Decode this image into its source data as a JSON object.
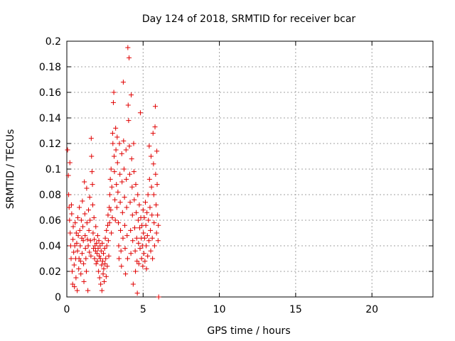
{
  "chart_data": {
    "type": "scatter",
    "title": "Day 124 of 2018, SRMTID for receiver bcar",
    "xlabel": "GPS time / hours",
    "ylabel": "SRMTID / TECUs",
    "xlim": [
      0,
      24
    ],
    "ylim": [
      0,
      0.2
    ],
    "xticks": [
      0,
      5,
      10,
      15,
      20
    ],
    "xtick_labels": [
      "0",
      "5",
      "10",
      "15",
      "20"
    ],
    "yticks": [
      0,
      0.02,
      0.04,
      0.06,
      0.08,
      0.1,
      0.12,
      0.14,
      0.16,
      0.18,
      0.2
    ],
    "ytick_labels": [
      "0",
      "0.02",
      "0.04",
      "0.06",
      "0.08",
      "0.1",
      "0.12",
      "0.14",
      "0.16",
      "0.18",
      "0.2"
    ],
    "grid": true,
    "marker": "+",
    "color": "#e00000",
    "series": [
      {
        "name": "SRMTID",
        "points": [
          [
            0.05,
            0.115
          ],
          [
            0.1,
            0.095
          ],
          [
            0.12,
            0.08
          ],
          [
            0.15,
            0.07
          ],
          [
            0.18,
            0.06
          ],
          [
            0.2,
            0.105
          ],
          [
            0.22,
            0.05
          ],
          [
            0.25,
            0.04
          ],
          [
            0.28,
            0.03
          ],
          [
            0.3,
            0.072
          ],
          [
            0.32,
            0.065
          ],
          [
            0.35,
            0.02
          ],
          [
            0.38,
            0.01
          ],
          [
            0.4,
            0.045
          ],
          [
            0.42,
            0.055
          ],
          [
            0.45,
            0.035
          ],
          [
            0.48,
            0.025
          ],
          [
            0.5,
            0.008
          ],
          [
            0.52,
            0.04
          ],
          [
            0.55,
            0.058
          ],
          [
            0.58,
            0.03
          ],
          [
            0.6,
            0.015
          ],
          [
            0.62,
            0.05
          ],
          [
            0.65,
            0.042
          ],
          [
            0.68,
            0.005
          ],
          [
            0.7,
            0.036
          ],
          [
            0.72,
            0.062
          ],
          [
            0.75,
            0.048
          ],
          [
            0.78,
            0.022
          ],
          [
            0.8,
            0.03
          ],
          [
            0.82,
            0.07
          ],
          [
            0.85,
            0.052
          ],
          [
            0.88,
            0.04
          ],
          [
            0.9,
            0.028
          ],
          [
            0.92,
            0.018
          ],
          [
            0.95,
            0.06
          ],
          [
            0.98,
            0.046
          ],
          [
            1.0,
            0.034
          ],
          [
            1.02,
            0.075
          ],
          [
            1.05,
            0.055
          ],
          [
            1.08,
            0.044
          ],
          [
            1.1,
            0.026
          ],
          [
            1.12,
            0.012
          ],
          [
            1.15,
            0.09
          ],
          [
            1.18,
            0.065
          ],
          [
            1.2,
            0.048
          ],
          [
            1.22,
            0.038
          ],
          [
            1.25,
            0.03
          ],
          [
            1.28,
            0.02
          ],
          [
            1.3,
            0.085
          ],
          [
            1.32,
            0.058
          ],
          [
            1.35,
            0.045
          ],
          [
            1.38,
            0.005
          ],
          [
            1.4,
            0.04
          ],
          [
            1.42,
            0.068
          ],
          [
            1.45,
            0.052
          ],
          [
            1.48,
            0.035
          ],
          [
            1.5,
            0.078
          ],
          [
            1.52,
            0.06
          ],
          [
            1.55,
            0.044
          ],
          [
            1.58,
            0.032
          ],
          [
            1.6,
            0.124
          ],
          [
            1.62,
            0.11
          ],
          [
            1.65,
            0.098
          ],
          [
            1.68,
            0.088
          ],
          [
            1.7,
            0.072
          ],
          [
            1.72,
            0.05
          ],
          [
            1.75,
            0.038
          ],
          [
            1.78,
            0.062
          ],
          [
            1.8,
            0.045
          ],
          [
            1.82,
            0.03
          ],
          [
            1.85,
            0.04
          ],
          [
            1.88,
            0.036
          ],
          [
            1.9,
            0.055
          ],
          [
            1.92,
            0.026
          ],
          [
            1.95,
            0.042
          ],
          [
            1.98,
            0.034
          ],
          [
            2.0,
            0.028
          ],
          [
            2.02,
            0.048
          ],
          [
            2.05,
            0.038
          ],
          [
            2.08,
            0.02
          ],
          [
            2.1,
            0.044
          ],
          [
            2.12,
            0.032
          ],
          [
            2.15,
            0.015
          ],
          [
            2.18,
            0.04
          ],
          [
            2.2,
            0.03
          ],
          [
            2.22,
            0.01
          ],
          [
            2.25,
            0.036
          ],
          [
            2.28,
            0.025
          ],
          [
            2.3,
            0.005
          ],
          [
            2.32,
            0.042
          ],
          [
            2.35,
            0.028
          ],
          [
            2.38,
            0.018
          ],
          [
            2.4,
            0.034
          ],
          [
            2.42,
            0.022
          ],
          [
            2.45,
            0.012
          ],
          [
            2.48,
            0.038
          ],
          [
            2.5,
            0.026
          ],
          [
            2.52,
            0.046
          ],
          [
            2.55,
            0.03
          ],
          [
            2.58,
            0.016
          ],
          [
            2.6,
            0.052
          ],
          [
            2.62,
            0.04
          ],
          [
            2.65,
            0.024
          ],
          [
            2.68,
            0.056
          ],
          [
            2.7,
            0.064
          ],
          [
            2.72,
            0.044
          ],
          [
            2.75,
            0.032
          ],
          [
            2.78,
            0.07
          ],
          [
            2.8,
            0.058
          ],
          [
            2.82,
            0.08
          ],
          [
            2.85,
            0.092
          ],
          [
            2.88,
            0.068
          ],
          [
            2.9,
            0.1
          ],
          [
            2.92,
            0.05
          ],
          [
            2.95,
            0.086
          ],
          [
            2.98,
            0.062
          ],
          [
            3.0,
            0.128
          ],
          [
            3.02,
            0.12
          ],
          [
            3.05,
            0.152
          ],
          [
            3.08,
            0.16
          ],
          [
            3.1,
            0.11
          ],
          [
            3.12,
            0.098
          ],
          [
            3.15,
            0.076
          ],
          [
            3.18,
            0.06
          ],
          [
            3.2,
            0.132
          ],
          [
            3.22,
            0.115
          ],
          [
            3.25,
            0.088
          ],
          [
            3.28,
            0.07
          ],
          [
            3.3,
            0.125
          ],
          [
            3.32,
            0.105
          ],
          [
            3.35,
            0.082
          ],
          [
            3.38,
            0.058
          ],
          [
            3.4,
            0.04
          ],
          [
            3.42,
            0.03
          ],
          [
            3.45,
            0.12
          ],
          [
            3.48,
            0.096
          ],
          [
            3.5,
            0.074
          ],
          [
            3.52,
            0.052
          ],
          [
            3.55,
            0.036
          ],
          [
            3.58,
            0.024
          ],
          [
            3.6,
            0.112
          ],
          [
            3.62,
            0.09
          ],
          [
            3.65,
            0.066
          ],
          [
            3.68,
            0.046
          ],
          [
            3.7,
            0.168
          ],
          [
            3.72,
            0.122
          ],
          [
            3.75,
            0.1
          ],
          [
            3.78,
            0.078
          ],
          [
            3.8,
            0.056
          ],
          [
            3.82,
            0.038
          ],
          [
            3.85,
            0.018
          ],
          [
            3.88,
            0.115
          ],
          [
            3.9,
            0.092
          ],
          [
            3.92,
            0.07
          ],
          [
            3.95,
            0.048
          ],
          [
            3.98,
            0.03
          ],
          [
            4.0,
            0.195
          ],
          [
            4.02,
            0.15
          ],
          [
            4.05,
            0.138
          ],
          [
            4.08,
            0.187
          ],
          [
            4.1,
            0.118
          ],
          [
            4.12,
            0.096
          ],
          [
            4.15,
            0.074
          ],
          [
            4.18,
            0.052
          ],
          [
            4.2,
            0.034
          ],
          [
            4.22,
            0.158
          ],
          [
            4.25,
            0.108
          ],
          [
            4.28,
            0.086
          ],
          [
            4.3,
            0.064
          ],
          [
            4.32,
            0.044
          ],
          [
            4.35,
            0.01
          ],
          [
            4.38,
            0.12
          ],
          [
            4.4,
            0.098
          ],
          [
            4.42,
            0.076
          ],
          [
            4.45,
            0.054
          ],
          [
            4.48,
            0.036
          ],
          [
            4.5,
            0.02
          ],
          [
            4.52,
            0.088
          ],
          [
            4.55,
            0.066
          ],
          [
            4.58,
            0.046
          ],
          [
            4.6,
            0.028
          ],
          [
            4.62,
            0.003
          ],
          [
            4.65,
            0.08
          ],
          [
            4.68,
            0.06
          ],
          [
            4.7,
            0.042
          ],
          [
            4.72,
            0.026
          ],
          [
            4.75,
            0.072
          ],
          [
            4.78,
            0.054
          ],
          [
            4.8,
            0.038
          ],
          [
            4.82,
            0.144
          ],
          [
            4.85,
            0.062
          ],
          [
            4.88,
            0.046
          ],
          [
            4.9,
            0.03
          ],
          [
            4.92,
            0.056
          ],
          [
            4.95,
            0.04
          ],
          [
            4.98,
            0.024
          ],
          [
            5.0,
            0.068
          ],
          [
            5.02,
            0.05
          ],
          [
            5.05,
            0.034
          ],
          [
            5.08,
            0.062
          ],
          [
            5.1,
            0.046
          ],
          [
            5.12,
            0.028
          ],
          [
            5.15,
            0.074
          ],
          [
            5.18,
            0.056
          ],
          [
            5.2,
            0.04
          ],
          [
            5.22,
            0.022
          ],
          [
            5.25,
            0.066
          ],
          [
            5.28,
            0.048
          ],
          [
            5.3,
            0.032
          ],
          [
            5.32,
            0.08
          ],
          [
            5.35,
            0.06
          ],
          [
            5.38,
            0.044
          ],
          [
            5.4,
            0.118
          ],
          [
            5.42,
            0.092
          ],
          [
            5.45,
            0.07
          ],
          [
            5.48,
            0.052
          ],
          [
            5.5,
            0.036
          ],
          [
            5.52,
            0.11
          ],
          [
            5.55,
            0.086
          ],
          [
            5.58,
            0.064
          ],
          [
            5.6,
            0.046
          ],
          [
            5.62,
            0.03
          ],
          [
            5.65,
            0.128
          ],
          [
            5.68,
            0.104
          ],
          [
            5.7,
            0.08
          ],
          [
            5.72,
            0.058
          ],
          [
            5.75,
            0.04
          ],
          [
            5.78,
            0.133
          ],
          [
            5.8,
            0.149
          ],
          [
            5.82,
            0.096
          ],
          [
            5.85,
            0.072
          ],
          [
            5.88,
            0.05
          ],
          [
            5.9,
            0.114
          ],
          [
            5.92,
            0.088
          ],
          [
            5.95,
            0.064
          ],
          [
            5.98,
            0.044
          ],
          [
            6.0,
            0.056
          ],
          [
            6.02,
            0.0
          ]
        ]
      }
    ]
  }
}
